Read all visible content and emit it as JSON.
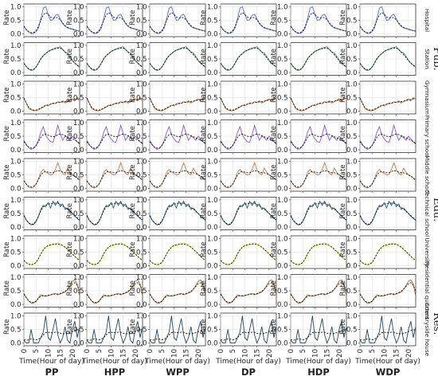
{
  "chart_data": {
    "type": "line",
    "layout": "grid of small-multiple line plots, 9 rows x 6 columns",
    "columns": [
      "PP",
      "HPP",
      "WPP",
      "DP",
      "HDP",
      "WDP"
    ],
    "rows": [
      {
        "label": "Hospital",
        "group": "Pub.",
        "color": "#4a6fd8"
      },
      {
        "label": "Station",
        "group": "Pub.",
        "color": "#2f8b57"
      },
      {
        "label": "Gymnasium",
        "group": "Pub.",
        "color": "#b86a2e"
      },
      {
        "label": "Primary school",
        "group": "Edu.",
        "color": "#8a52d6"
      },
      {
        "label": "Middle school",
        "group": "Edu.",
        "color": "#c27a4a"
      },
      {
        "label": "Technical school",
        "group": "Edu.",
        "color": "#1f5a80"
      },
      {
        "label": "University",
        "group": "Edu.",
        "color": "#e3e02c"
      },
      {
        "label": "Residential quarters",
        "group": "Res.",
        "color": "#a8631e"
      },
      {
        "label": "Countryside house",
        "group": "Res.",
        "color": "#21465e"
      }
    ],
    "groups": [
      "Pub.",
      "Edu.",
      "Res."
    ],
    "ylabel": "Rate",
    "xlabel": "Time(Hour of day)",
    "x_ticks": [
      0,
      5,
      10,
      15,
      20
    ],
    "y_ticks": [
      "0.0",
      "0.5",
      "1.0"
    ],
    "xlim": [
      0,
      23
    ],
    "ylim": [
      -0.1,
      1.1
    ],
    "x": [
      0,
      1,
      2,
      3,
      4,
      5,
      6,
      7,
      8,
      9,
      10,
      11,
      12,
      13,
      14,
      15,
      16,
      17,
      18,
      19,
      20,
      21,
      22,
      23
    ],
    "grid": true,
    "series_styles": {
      "actual": "solid colored line",
      "fitted": "dashed black line"
    },
    "series": [
      {
        "row": "Hospital",
        "actual": [
          0.3,
          0.15,
          0.07,
          0.02,
          0.02,
          0.08,
          0.22,
          0.55,
          0.95,
          1.0,
          0.72,
          0.5,
          0.52,
          0.68,
          0.72,
          0.55,
          0.38,
          0.28,
          0.22,
          0.2,
          0.18,
          0.15,
          0.12,
          0.1
        ],
        "fitted": [
          0.28,
          0.16,
          0.08,
          0.04,
          0.05,
          0.12,
          0.28,
          0.5,
          0.7,
          0.78,
          0.72,
          0.62,
          0.58,
          0.6,
          0.6,
          0.52,
          0.4,
          0.3,
          0.24,
          0.2,
          0.17,
          0.14,
          0.12,
          0.1
        ]
      },
      {
        "row": "Station",
        "actual": [
          0.35,
          0.22,
          0.12,
          0.08,
          0.1,
          0.2,
          0.35,
          0.52,
          0.62,
          0.7,
          0.78,
          0.82,
          0.85,
          0.9,
          0.92,
          0.95,
          0.85,
          0.75,
          0.72,
          0.6,
          0.45,
          0.35,
          0.28,
          0.2
        ],
        "fitted": [
          0.34,
          0.22,
          0.14,
          0.1,
          0.12,
          0.2,
          0.34,
          0.5,
          0.62,
          0.7,
          0.76,
          0.82,
          0.86,
          0.88,
          0.9,
          0.9,
          0.84,
          0.76,
          0.66,
          0.55,
          0.44,
          0.34,
          0.26,
          0.2
        ]
      },
      {
        "row": "Gymnasium",
        "actual": [
          0.5,
          0.3,
          0.1,
          0.05,
          0.02,
          0.02,
          0.05,
          0.1,
          0.15,
          0.22,
          0.2,
          0.25,
          0.3,
          0.28,
          0.35,
          0.32,
          0.38,
          0.3,
          0.35,
          0.4,
          0.45,
          0.38,
          0.5,
          0.45
        ],
        "fitted": [
          0.48,
          0.3,
          0.14,
          0.07,
          0.04,
          0.04,
          0.07,
          0.12,
          0.17,
          0.21,
          0.23,
          0.26,
          0.28,
          0.3,
          0.32,
          0.33,
          0.34,
          0.35,
          0.37,
          0.39,
          0.41,
          0.43,
          0.45,
          0.46
        ]
      },
      {
        "row": "Primary school",
        "actual": [
          0.35,
          0.2,
          0.08,
          0.02,
          0.05,
          0.15,
          0.35,
          0.65,
          0.85,
          0.55,
          0.4,
          0.3,
          0.28,
          0.55,
          0.9,
          0.6,
          0.35,
          0.5,
          0.45,
          0.35,
          0.5,
          0.4,
          0.3,
          0.2
        ],
        "fitted": [
          0.3,
          0.18,
          0.1,
          0.06,
          0.08,
          0.16,
          0.3,
          0.46,
          0.56,
          0.58,
          0.54,
          0.5,
          0.48,
          0.5,
          0.56,
          0.58,
          0.56,
          0.52,
          0.48,
          0.44,
          0.4,
          0.36,
          0.3,
          0.24
        ]
      },
      {
        "row": "Middle school",
        "actual": [
          0.3,
          0.15,
          0.05,
          0.02,
          0.05,
          0.15,
          0.35,
          0.6,
          0.7,
          0.6,
          0.55,
          0.5,
          0.52,
          0.7,
          0.95,
          0.7,
          0.55,
          0.5,
          0.75,
          0.6,
          0.5,
          0.45,
          0.4,
          0.3
        ],
        "fitted": [
          0.28,
          0.16,
          0.08,
          0.05,
          0.08,
          0.16,
          0.32,
          0.5,
          0.6,
          0.62,
          0.6,
          0.58,
          0.58,
          0.62,
          0.66,
          0.64,
          0.6,
          0.58,
          0.58,
          0.55,
          0.5,
          0.45,
          0.38,
          0.3
        ]
      },
      {
        "row": "Technical school",
        "actual": [
          0.45,
          0.25,
          0.15,
          0.08,
          0.1,
          0.2,
          0.4,
          0.65,
          0.8,
          0.75,
          0.9,
          0.7,
          0.95,
          0.8,
          0.95,
          0.75,
          0.85,
          0.65,
          0.7,
          0.6,
          0.5,
          0.4,
          0.32,
          0.25
        ],
        "fitted": [
          0.42,
          0.26,
          0.16,
          0.1,
          0.12,
          0.22,
          0.4,
          0.6,
          0.74,
          0.8,
          0.84,
          0.86,
          0.88,
          0.88,
          0.88,
          0.84,
          0.78,
          0.72,
          0.66,
          0.58,
          0.5,
          0.42,
          0.34,
          0.26
        ]
      },
      {
        "row": "University",
        "actual": [
          0.2,
          0.1,
          0.05,
          0.02,
          0.04,
          0.1,
          0.25,
          0.45,
          0.6,
          0.7,
          0.75,
          0.72,
          0.8,
          0.78,
          0.85,
          0.8,
          0.75,
          0.7,
          0.6,
          0.55,
          0.45,
          0.35,
          0.25,
          0.2
        ],
        "fitted": [
          0.2,
          0.11,
          0.06,
          0.04,
          0.06,
          0.12,
          0.26,
          0.44,
          0.58,
          0.68,
          0.74,
          0.77,
          0.79,
          0.8,
          0.8,
          0.78,
          0.74,
          0.68,
          0.6,
          0.52,
          0.43,
          0.34,
          0.26,
          0.2
        ]
      },
      {
        "row": "Residential quarters",
        "actual": [
          0.4,
          0.25,
          0.12,
          0.05,
          0.05,
          0.1,
          0.25,
          0.35,
          0.32,
          0.3,
          0.32,
          0.35,
          0.38,
          0.4,
          0.35,
          0.38,
          0.42,
          0.45,
          0.55,
          0.7,
          0.85,
          0.9,
          0.75,
          0.3
        ],
        "fitted": [
          0.38,
          0.24,
          0.13,
          0.07,
          0.07,
          0.12,
          0.22,
          0.3,
          0.32,
          0.32,
          0.33,
          0.35,
          0.37,
          0.38,
          0.38,
          0.4,
          0.43,
          0.48,
          0.56,
          0.66,
          0.76,
          0.8,
          0.7,
          0.5
        ]
      },
      {
        "row": "Countryside house",
        "actual": [
          0.1,
          0.0,
          0.0,
          0.5,
          0.0,
          0.0,
          0.0,
          0.2,
          0.4,
          1.0,
          0.2,
          0.1,
          0.5,
          0.9,
          0.3,
          0.0,
          0.2,
          0.6,
          0.1,
          0.0,
          0.5,
          0.8,
          0.2,
          0.6
        ],
        "fitted": [
          0.12,
          0.1,
          0.12,
          0.15,
          0.14,
          0.12,
          0.14,
          0.2,
          0.3,
          0.38,
          0.4,
          0.38,
          0.38,
          0.4,
          0.4,
          0.36,
          0.34,
          0.34,
          0.35,
          0.38,
          0.42,
          0.46,
          0.48,
          0.5
        ]
      }
    ]
  }
}
